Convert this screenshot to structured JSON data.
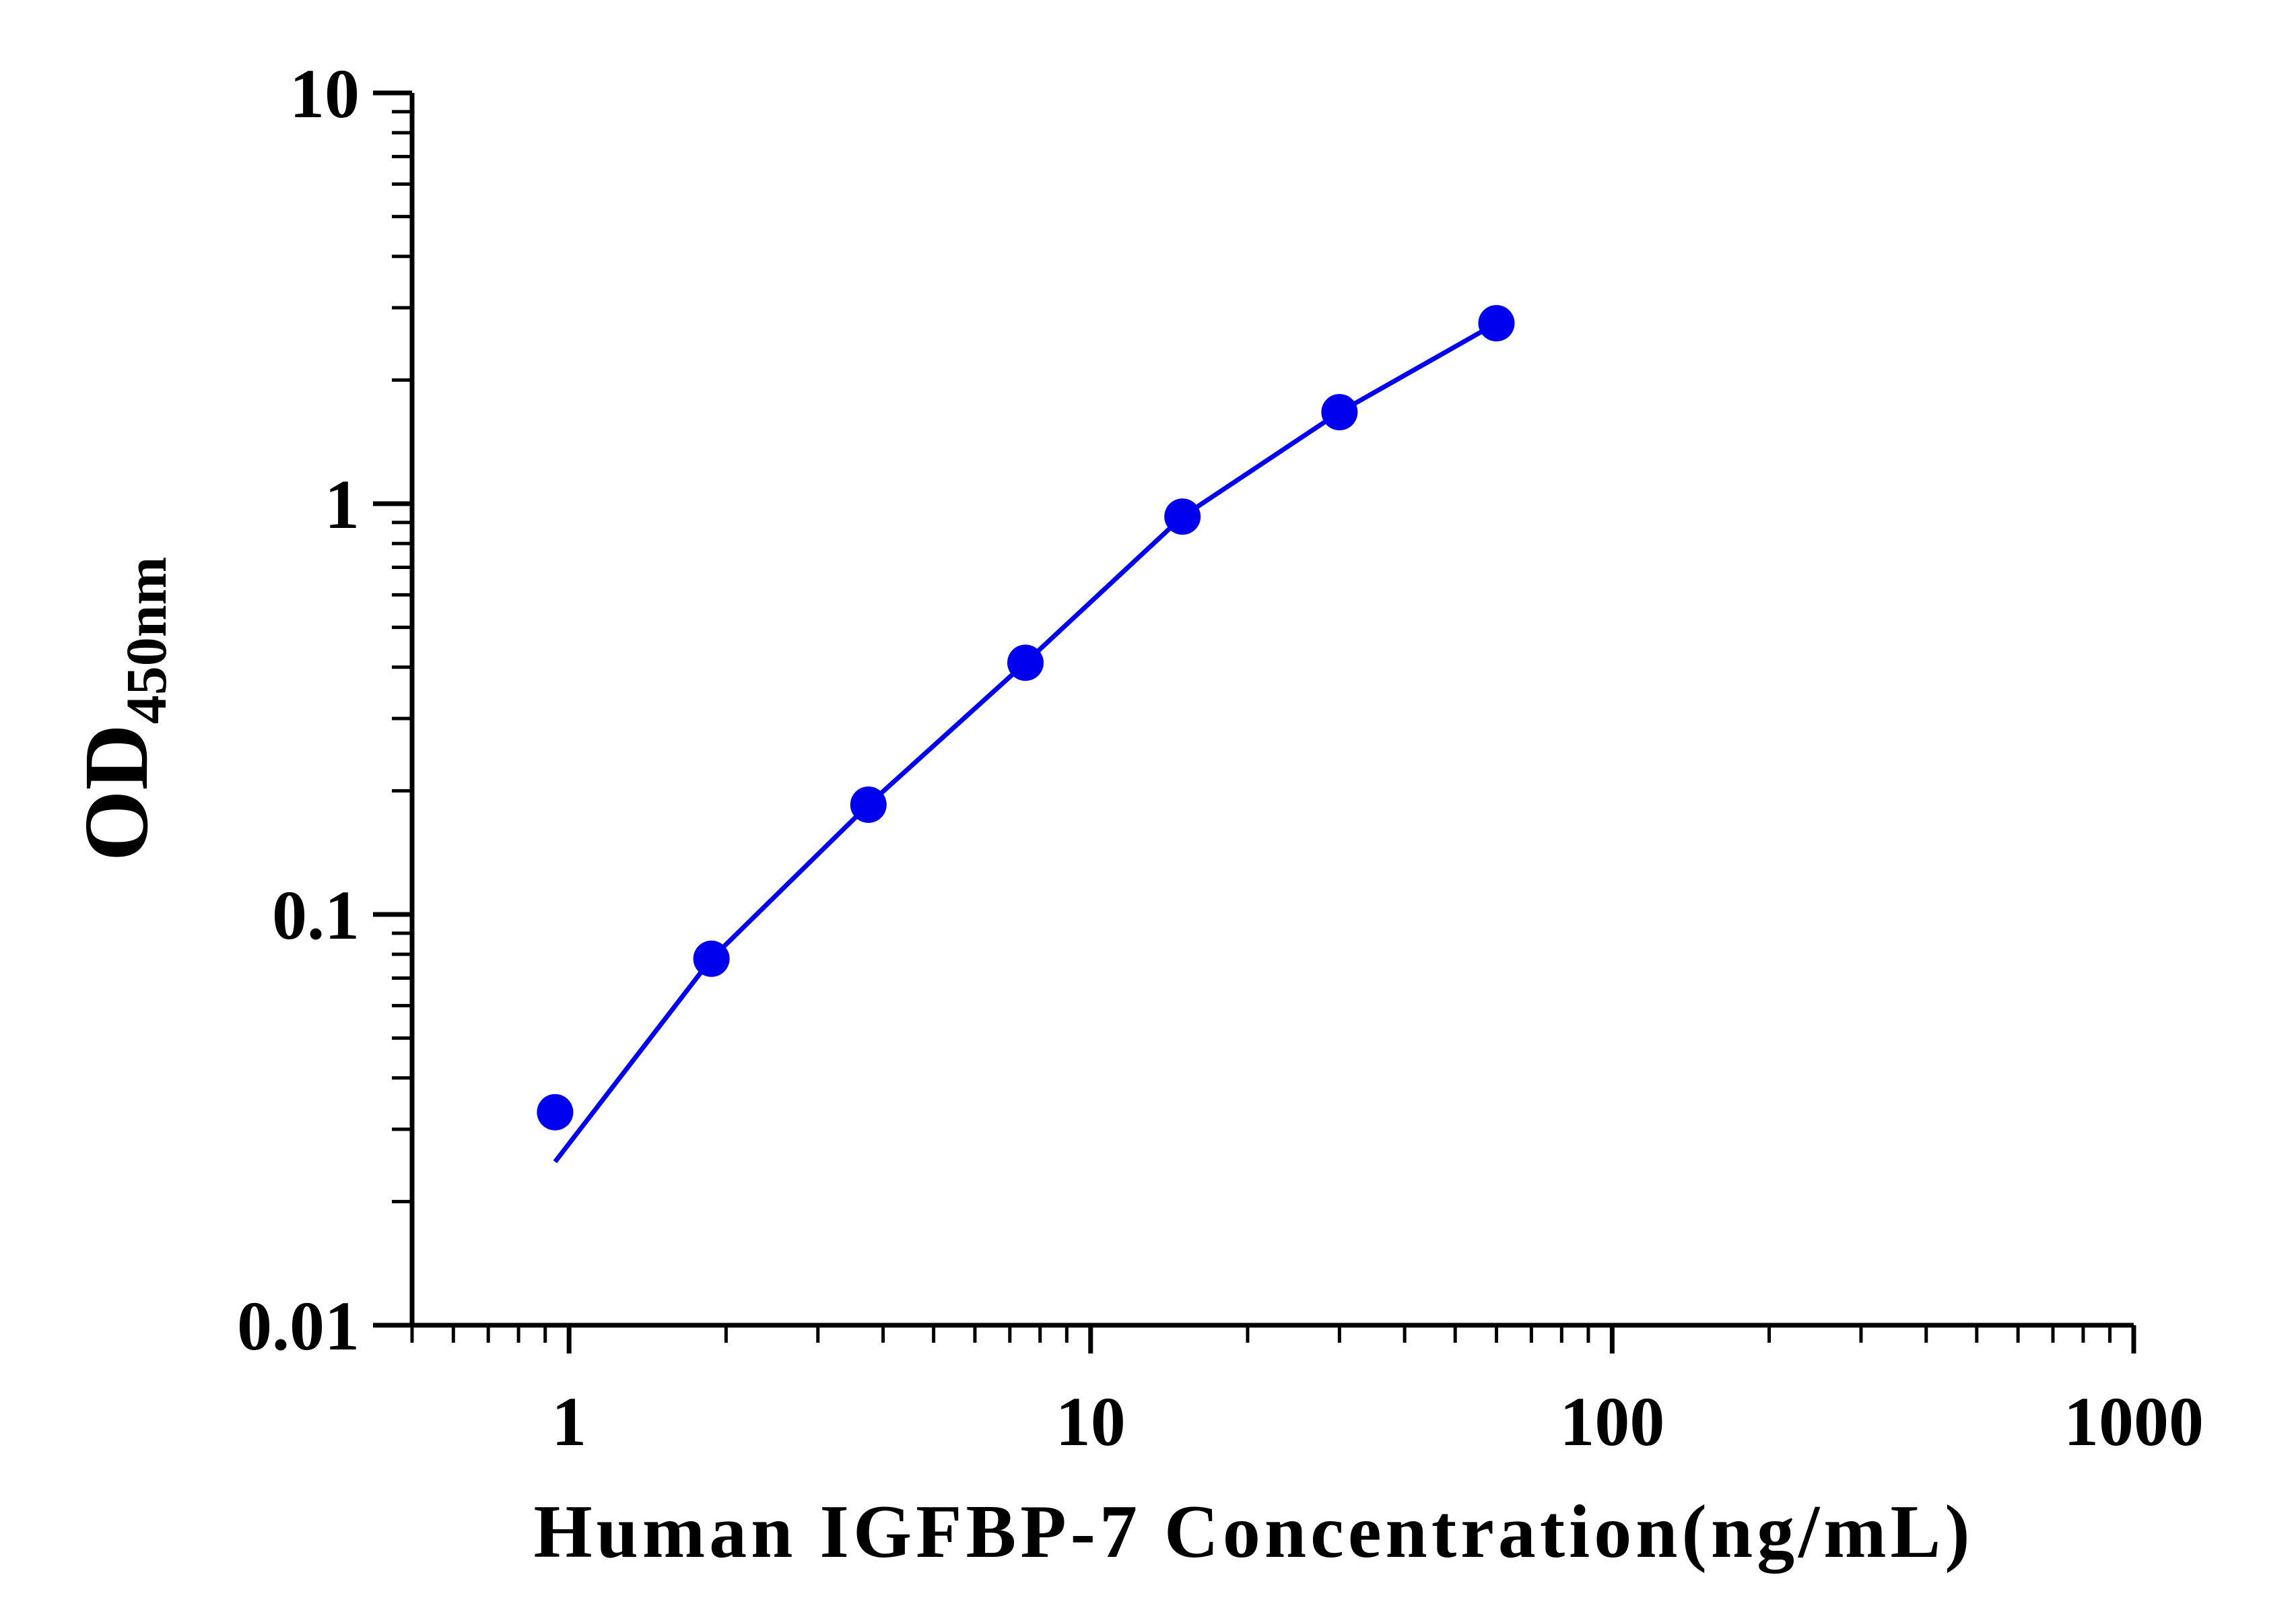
{
  "chart_data": {
    "type": "scatter",
    "title": "",
    "xlabel": "Human IGFBP-7 Concentration(ng/mL)",
    "ylabel": "OD",
    "ylabel_subscript": "450nm",
    "x_scale": "log",
    "y_scale": "log",
    "xlim": [
      0.5,
      1000
    ],
    "ylim": [
      0.01,
      10
    ],
    "x_ticks": [
      "1",
      "10",
      "100",
      "1000"
    ],
    "y_ticks": [
      "0.01",
      "0.1",
      "1",
      "10"
    ],
    "grid": false,
    "legend": "none",
    "series": [
      {
        "x": [
          0.94,
          1.875,
          3.75,
          7.5,
          15,
          30,
          60
        ],
        "y": [
          0.033,
          0.078,
          0.185,
          0.41,
          0.93,
          1.67,
          2.75
        ]
      }
    ],
    "fit_line": {
      "x": [
        0.94,
        1.875,
        3.75,
        7.5,
        15,
        30,
        60
      ],
      "y": [
        0.025,
        0.078,
        0.185,
        0.41,
        0.93,
        1.67,
        2.75
      ]
    },
    "colors": {
      "series": "#0000ee",
      "axes": "#000000"
    }
  }
}
